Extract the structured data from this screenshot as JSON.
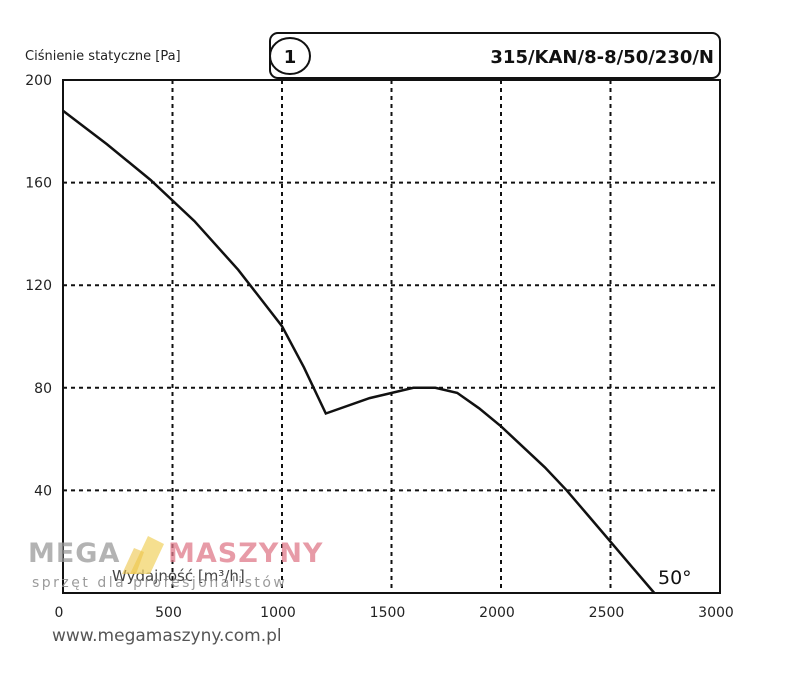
{
  "chart_data": {
    "type": "line",
    "ylabel": "Ciśnienie statyczne [Pa]",
    "xlabel": "Wydajność [m³/h]",
    "curve_number": "1",
    "model": "315/KAN/8-8/50/230/N",
    "annotation": "50°",
    "xlim": [
      0,
      3000
    ],
    "ylim": [
      0,
      200
    ],
    "x_ticks": [
      0,
      500,
      1000,
      1500,
      2000,
      2500,
      3000
    ],
    "y_ticks": [
      40,
      80,
      120,
      160,
      200
    ],
    "grid": true,
    "series": [
      {
        "x": [
          0,
          200,
          400,
          600,
          800,
          1000,
          1100,
          1200,
          1400,
          1600,
          1700,
          1800,
          1900,
          2000,
          2100,
          2200,
          2300,
          2400,
          2500,
          2600,
          2700
        ],
        "y": [
          188,
          175,
          161,
          145,
          126,
          104,
          88,
          70,
          76,
          80,
          80,
          78,
          72,
          65,
          57,
          49,
          40,
          30,
          20,
          10,
          0
        ]
      }
    ]
  },
  "watermark": {
    "brand_a": "MEGA",
    "brand_b": "MASZYNY",
    "tagline": "sprzęt dla profesjonalistów",
    "url": "www.megamaszyny.com.pl"
  }
}
